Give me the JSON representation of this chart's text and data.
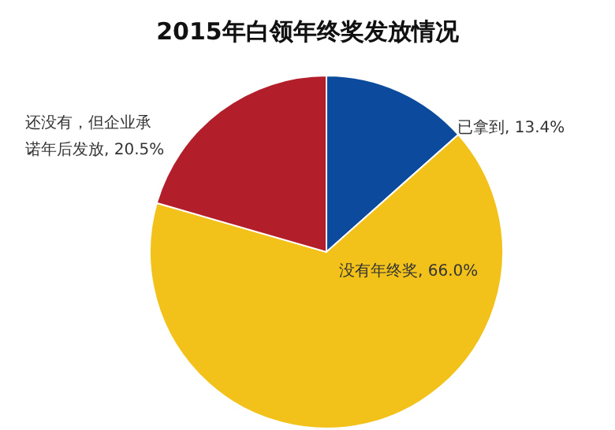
{
  "chart_data": {
    "type": "pie",
    "title": "2015年白领年终奖发放情况",
    "categories": [
      "已拿到",
      "没有年终奖",
      "还没有，但企业承诺年后发放"
    ],
    "values": [
      13.4,
      66.0,
      20.5
    ],
    "colors": [
      "#0b4a9c",
      "#f2c21b",
      "#b21e2a"
    ],
    "value_labels": [
      ", 13.4%",
      ", 66.0%",
      ", 20.5%"
    ],
    "legend": false
  }
}
